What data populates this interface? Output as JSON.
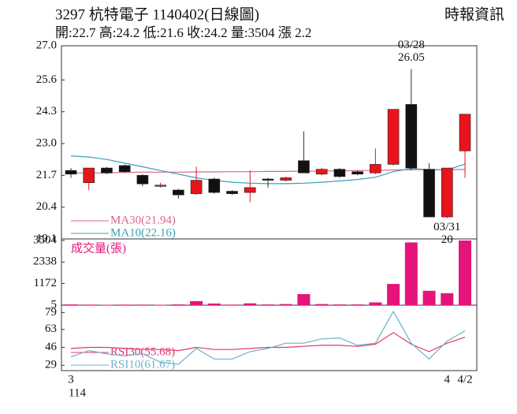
{
  "header": {
    "title": "3297  杭特電子 1140402(日線圖)",
    "source": "時報資訊",
    "summary": "開:22.7 高:24.2 低:21.6 收:24.2 量:3504 漲 2.2"
  },
  "chart_data": [
    {
      "type": "candlestick",
      "categories": [
        "3",
        null,
        null,
        null,
        null,
        null,
        null,
        null,
        null,
        null,
        null,
        null,
        null,
        null,
        null,
        null,
        null,
        null,
        null,
        null,
        null,
        "4",
        "4/2"
      ],
      "x_sub_label": "114",
      "open": [
        21.9,
        21.4,
        22.0,
        22.1,
        21.7,
        21.25,
        21.1,
        20.95,
        21.55,
        21.05,
        21.0,
        21.55,
        21.5,
        22.3,
        21.75,
        21.95,
        21.85,
        21.8,
        22.15,
        24.6,
        21.95,
        20.0,
        22.7
      ],
      "high": [
        22.0,
        22.0,
        22.05,
        22.15,
        21.75,
        21.4,
        21.15,
        22.05,
        21.6,
        21.1,
        21.9,
        21.6,
        21.65,
        23.5,
        22.0,
        22.0,
        21.9,
        22.8,
        24.4,
        26.05,
        22.2,
        22.0,
        24.2
      ],
      "low": [
        21.6,
        21.1,
        21.75,
        21.8,
        21.25,
        21.2,
        20.75,
        20.9,
        20.95,
        20.9,
        20.6,
        21.2,
        21.45,
        21.8,
        21.7,
        21.6,
        21.7,
        21.75,
        22.1,
        21.9,
        20.0,
        19.95,
        21.6
      ],
      "close": [
        21.75,
        22.0,
        21.8,
        21.85,
        21.35,
        21.3,
        20.9,
        21.5,
        21.0,
        20.95,
        21.2,
        21.5,
        21.6,
        21.8,
        21.95,
        21.65,
        21.75,
        22.15,
        24.4,
        22.0,
        20.0,
        22.0,
        24.2
      ],
      "up_color": "#e8141c",
      "down_color": "#111111",
      "high_label": {
        "date": "03/28",
        "label": "26.05"
      },
      "low_label": {
        "date": "03/31",
        "label": "20"
      },
      "series": [
        {
          "name": "MA30(21.94)",
          "color": "#d9668c",
          "values": [
            21.8,
            21.8,
            21.8,
            21.82,
            21.83,
            21.83,
            21.83,
            21.84,
            21.84,
            21.85,
            21.85,
            21.86,
            21.86,
            21.87,
            21.88,
            21.88,
            21.9,
            21.9,
            21.92,
            21.93,
            21.93,
            21.93,
            21.94
          ]
        },
        {
          "name": "MA10(22.16)",
          "color": "#3a9fb5",
          "values": [
            22.5,
            22.45,
            22.35,
            22.2,
            22.05,
            21.9,
            21.75,
            21.6,
            21.5,
            21.42,
            21.38,
            21.36,
            21.36,
            21.38,
            21.42,
            21.47,
            21.53,
            21.62,
            21.85,
            21.98,
            21.93,
            21.92,
            22.16
          ]
        }
      ],
      "ylim": [
        19.1,
        27.0
      ],
      "yticks": [
        {
          "value": 27.0,
          "label": "27.0"
        },
        25.6,
        24.3,
        {
          "value": 23.0,
          "label": "23.0"
        },
        21.7,
        20.4,
        19.1
      ]
    },
    {
      "type": "bar",
      "series": [
        {
          "name": "成交量(張)",
          "color": "#e5147a",
          "values": [
            40,
            30,
            20,
            30,
            30,
            20,
            40,
            220,
            90,
            30,
            100,
            40,
            60,
            600,
            60,
            40,
            40,
            150,
            1150,
            3400,
            780,
            650,
            3504
          ]
        }
      ],
      "ylim": [
        0,
        3504
      ],
      "yticks": [
        3504,
        2338,
        1172,
        5
      ]
    },
    {
      "type": "line",
      "series": [
        {
          "name": "RSI30(55.68)",
          "color": "#e03a6a",
          "values": [
            45,
            46,
            46,
            45,
            44,
            44,
            43,
            46,
            44,
            44,
            45,
            46,
            46,
            47,
            48,
            48,
            47,
            49,
            60,
            49,
            42,
            50,
            55.68
          ]
        },
        {
          "name": "RSI10(61.67)",
          "color": "#6cb0cc",
          "values": [
            37,
            43,
            40,
            38,
            40,
            32,
            30,
            45,
            35,
            35,
            42,
            45,
            50,
            50,
            54,
            55,
            48,
            50,
            80,
            50,
            35,
            52,
            61.67
          ]
        }
      ],
      "ylim": [
        24,
        86
      ],
      "yticks": [
        79,
        63,
        46,
        29
      ]
    }
  ]
}
